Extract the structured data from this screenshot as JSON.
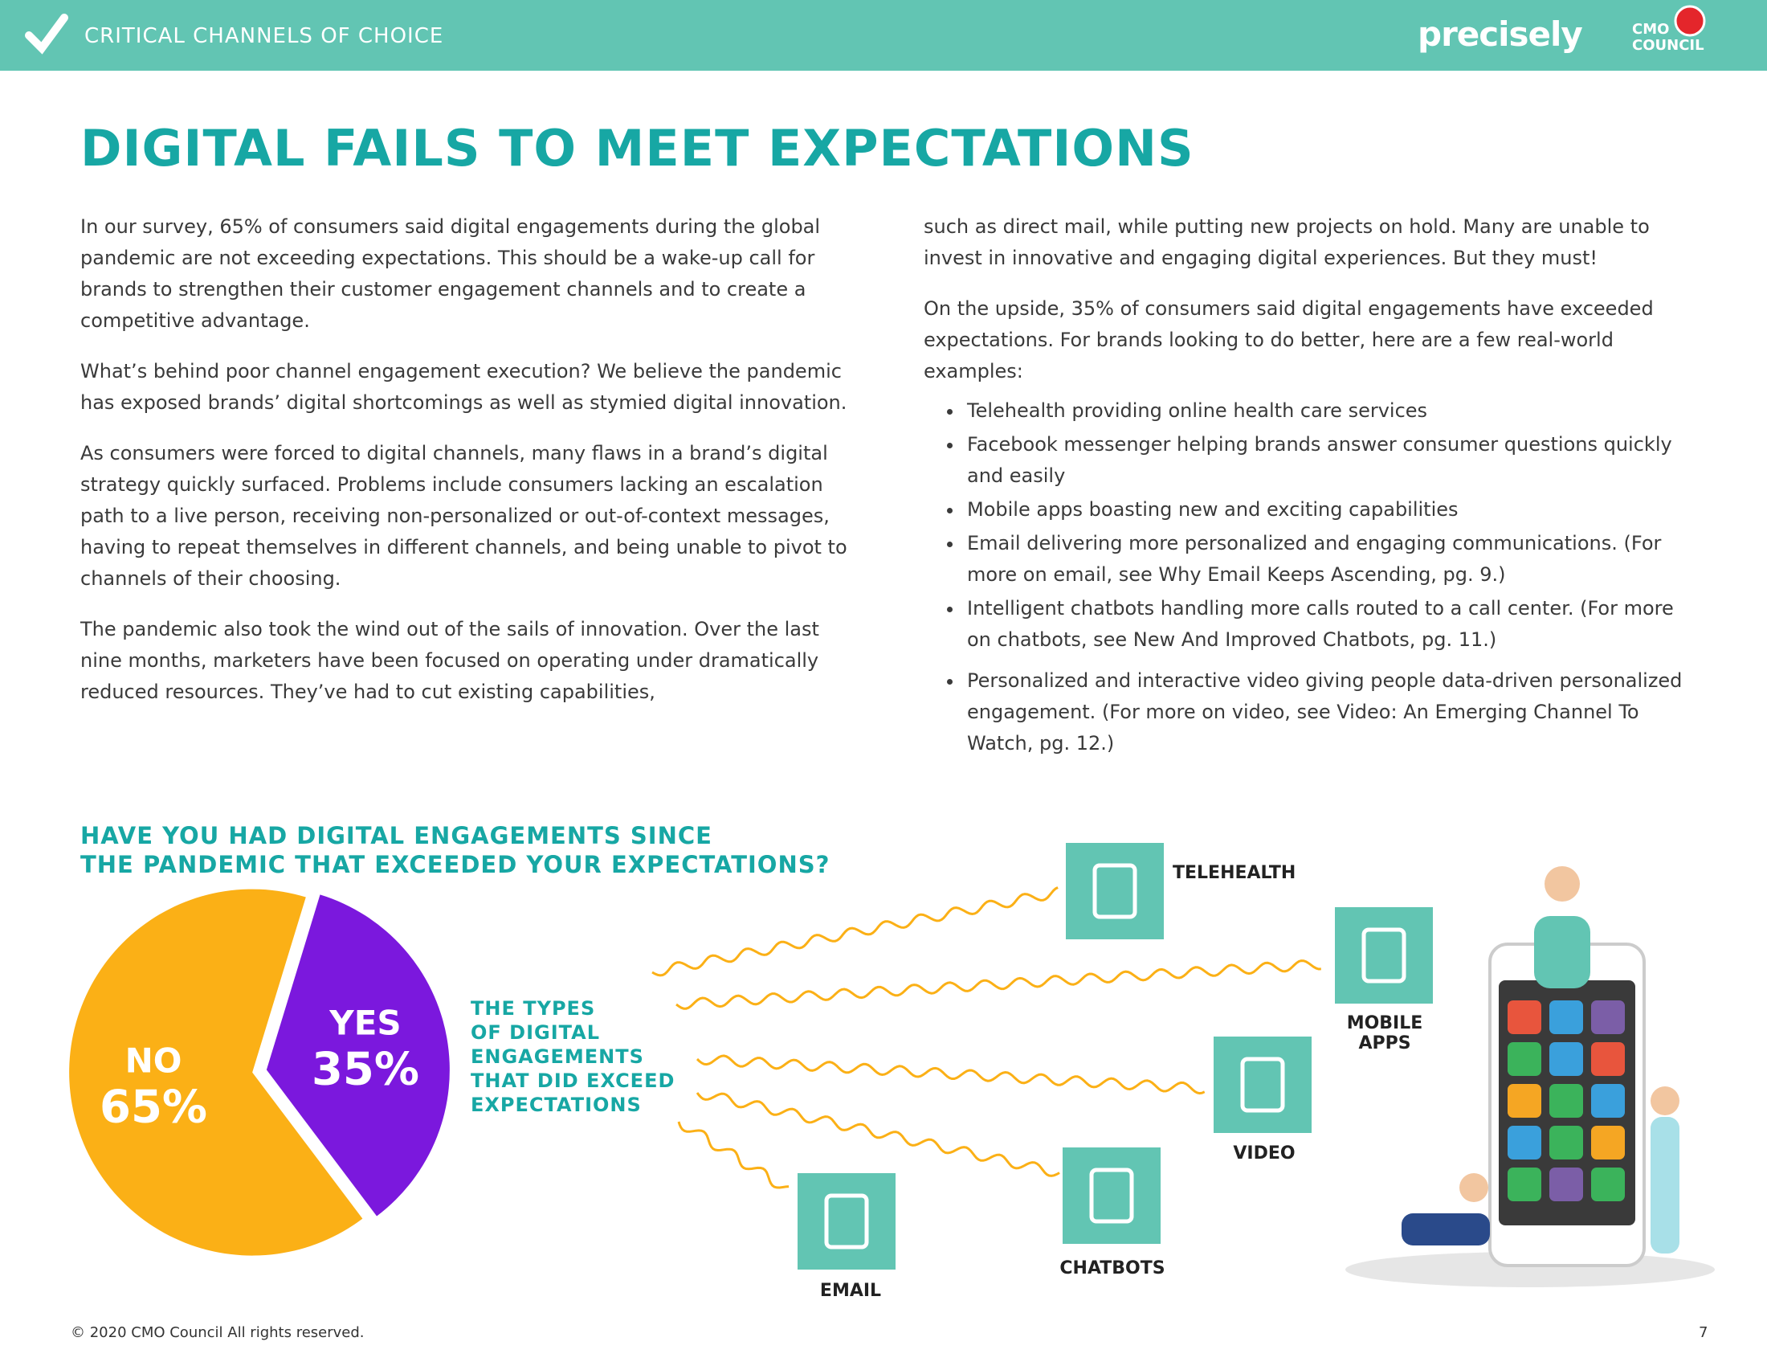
{
  "header": {
    "section": "CRITICAL CHANNELS OF CHOICE",
    "brand": "precisely",
    "logo_top": "CMO",
    "logo_bottom": "COUNCIL"
  },
  "title": "DIGITAL FAILS TO MEET EXPECTATIONS",
  "left_paragraphs": [
    "In our survey, 65% of consumers said digital engagements during the global pandemic are not exceeding expectations. This should be a wake-up call for brands to strengthen their customer engagement channels and to create a competitive advantage.",
    "What’s behind poor channel engagement execution? We believe the pandemic has exposed brands’ digital shortcomings as well as stymied digital innovation.",
    "As consumers were forced to digital channels, many flaws in a brand’s digital strategy quickly surfaced. Problems include consumers lacking an escalation path to a live person, receiving non-personalized or out-of-context messages, having to repeat themselves in different channels, and being unable to pivot to channels of their choosing.",
    "The pandemic also took the wind out of the sails of innovation. Over the last nine months, marketers have been focused on operating under dramatically reduced resources. They’ve had to cut existing capabilities,"
  ],
  "right_paragraphs": [
    "such as direct mail, while putting new projects on hold. Many are unable to invest in innovative and engaging digital experiences. But they must!",
    "On the upside, 35% of consumers said digital engagements have exceeded expectations. For brands looking to do better, here are a few real-world examples:"
  ],
  "bullets": [
    "Telehealth providing online health care services",
    "Facebook messenger helping brands answer consumer questions quickly and easily",
    "Mobile apps boasting new and exciting capabilities",
    "Email delivering more personalized and engaging communications. (For more on email, see Why Email Keeps Ascending, pg. 9.)",
    "Intelligent chatbots handling more calls routed to a call center. (For more on chatbots, see New And Improved Chatbots, pg. 11.)",
    "Personalized and interactive video giving people data-driven personalized engagement. (For more on video, see Video: An Emerging Channel To Watch, pg. 12.)"
  ],
  "chart_data": {
    "type": "pie",
    "title": [
      "HAVE YOU HAD DIGITAL ENGAGEMENTS SINCE",
      "THE PANDEMIC THAT EXCEEDED YOUR EXPECTATIONS?"
    ],
    "categories": [
      "NO",
      "YES"
    ],
    "values": [
      65,
      35
    ],
    "value_labels": [
      "65%",
      "35%"
    ],
    "colors": [
      "#fbb016",
      "#7b18dd"
    ]
  },
  "callout": [
    "THE TYPES",
    "OF DIGITAL",
    "ENGAGEMENTS",
    "THAT DID EXCEED",
    "EXPECTATIONS"
  ],
  "channels": [
    "TELEHEALTH",
    "MOBILE APPS",
    "VIDEO",
    "CHATBOTS",
    "EMAIL"
  ],
  "footer": {
    "copyright": "© 2020 CMO Council  All rights reserved.",
    "page": "7"
  }
}
